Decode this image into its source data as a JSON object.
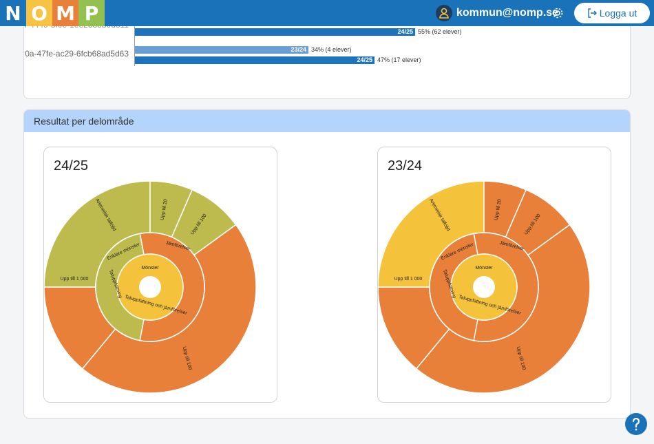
{
  "header": {
    "logo_letters": [
      {
        "letter": "N",
        "color": "#1a72b8"
      },
      {
        "letter": "O",
        "color": "#f6c343"
      },
      {
        "letter": "M",
        "color": "#e8803a"
      },
      {
        "letter": "P",
        "color": "#93c04f"
      }
    ],
    "user_email": "kommun@nomp.se",
    "logout_label": "Logga ut",
    "icons": [
      "user-icon",
      "gear-icon",
      "logout-icon",
      "help-icon"
    ]
  },
  "results": {
    "rows": [
      {
        "label": "...f-4449-8f0e-1ee2338b0d811",
        "bars": [
          {
            "period": "24/25",
            "percent": 55,
            "note": "55% (62 elever)",
            "color": "#1e74bc"
          }
        ]
      },
      {
        "label": "0a-47fe-ac29-6fcb68ad5d63",
        "bars": [
          {
            "period": "23/24",
            "percent": 34,
            "note": "34% (4 elever)",
            "color": "#6a9fd6"
          },
          {
            "period": "24/25",
            "percent": 47,
            "note": "47% (17 elever)",
            "color": "#1e74bc"
          }
        ]
      }
    ]
  },
  "section": {
    "title": "Resultat per delområde"
  },
  "charts": [
    {
      "title": "24/25",
      "rings": {
        "inner": [
          {
            "label": "Mönster",
            "value": 8,
            "color": "#f5c33b"
          }
        ],
        "middle": [
          {
            "label": "Enklare mönster",
            "value": 3,
            "color": "#bdbb4d"
          },
          {
            "label": "Taluppfattning",
            "value": 3,
            "color": "#e8803a"
          },
          {
            "label": "Jämförelser",
            "value": 2,
            "color": "#bdbb4d"
          }
        ],
        "outer": [
          {
            "label": "Upp till 1 000",
            "value": 1,
            "color": "#e8803a"
          },
          {
            "label": "Aritmetisk talföljd",
            "value": 1,
            "color": "#bdbb4d"
          },
          {
            "label": "Upp till 20",
            "value": 1,
            "color": "#bdbb4d"
          },
          {
            "label": "Upp till 100",
            "value": 1,
            "color": "#bdbb4d"
          },
          {
            "label": "Upp till 100",
            "value": 1,
            "color": "#e8803a"
          }
        ]
      }
    },
    {
      "title": "23/24",
      "rings": {
        "inner": [
          {
            "label": "Mönster",
            "value": 8,
            "color": "#f5c33b"
          }
        ],
        "middle": [
          {
            "label": "Enklare mönster",
            "value": 3,
            "color": "#f5c33b"
          },
          {
            "label": "Taluppfattning",
            "value": 3,
            "color": "#e8803a"
          },
          {
            "label": "Jämförelser",
            "value": 2,
            "color": "#e8803a"
          }
        ],
        "outer": [
          {
            "label": "Upp till 1 000",
            "value": 1,
            "color": "#e8803a"
          },
          {
            "label": "Aritmetisk talföljd",
            "value": 1,
            "color": "#f5c33b"
          },
          {
            "label": "Upp till 20",
            "value": 1,
            "color": "#e8803a"
          },
          {
            "label": "Upp till 100",
            "value": 1,
            "color": "#e8803a"
          },
          {
            "label": "Upp till 100",
            "value": 1,
            "color": "#e8803a"
          }
        ]
      }
    }
  ],
  "inner_ring_label": "Taluppfattning och jämförelser"
}
